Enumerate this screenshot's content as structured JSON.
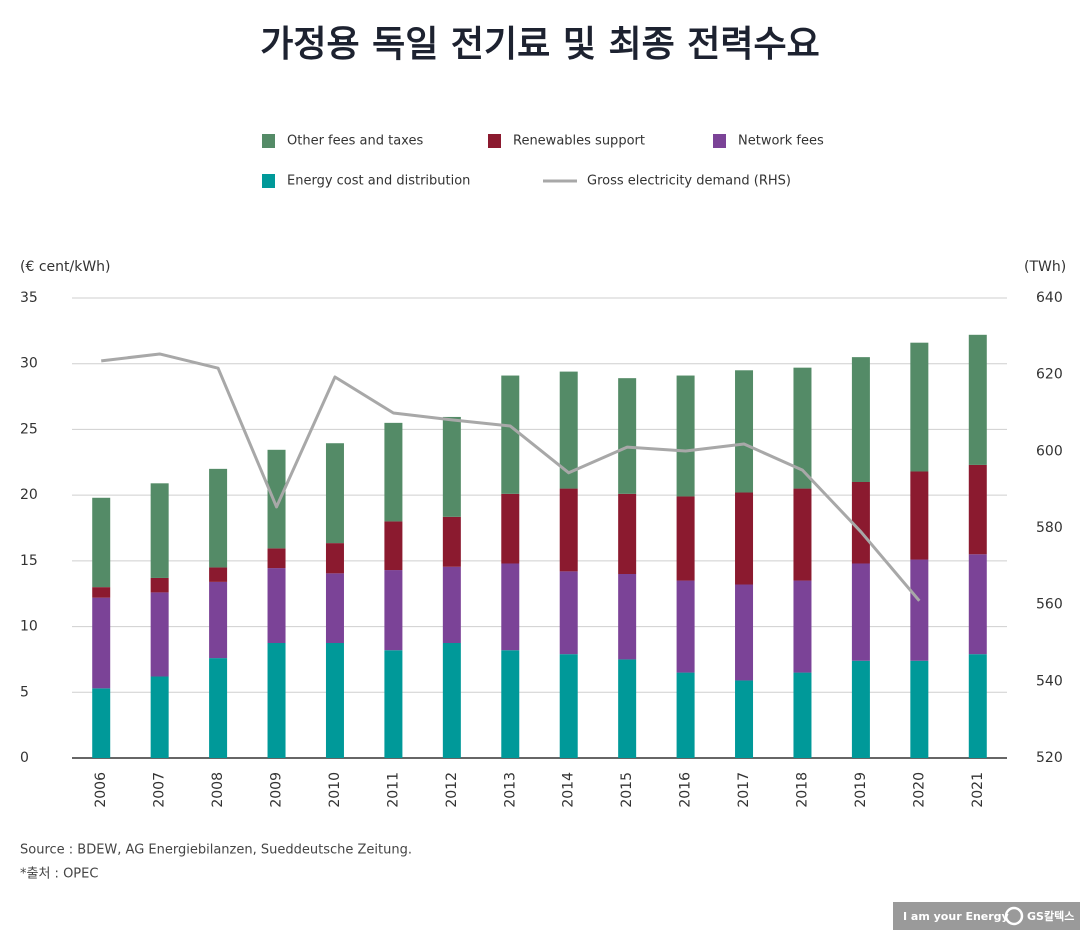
{
  "chart_data": {
    "type": "bar",
    "title": "가정용 독일 전기료 및 최종 전력수요",
    "y_label": "(€ cent/kWh)",
    "y2_label": "(TWh)",
    "categories": [
      "2006",
      "2007",
      "2008",
      "2009",
      "2010",
      "2011",
      "2012",
      "2013",
      "2014",
      "2015",
      "2016",
      "2017",
      "2018",
      "2019",
      "2020",
      "2021"
    ],
    "series": [
      {
        "name": "Other fees and taxes",
        "color": "#548b67",
        "values": [
          6.8,
          7.2,
          7.5,
          7.5,
          7.6,
          7.5,
          7.6,
          9.0,
          8.9,
          8.8,
          9.2,
          9.3,
          9.2,
          9.5,
          9.8,
          9.9
        ]
      },
      {
        "name": "Renewables support",
        "color": "#8b1a2f",
        "values": [
          0.8,
          1.1,
          1.1,
          1.5,
          2.3,
          3.7,
          3.8,
          5.3,
          6.3,
          6.1,
          6.4,
          7.0,
          7.0,
          6.2,
          6.7,
          6.8
        ]
      },
      {
        "name": "Network fees",
        "color": "#7b4397",
        "values": [
          6.9,
          6.4,
          5.8,
          5.7,
          5.3,
          6.1,
          5.8,
          6.6,
          6.3,
          6.5,
          7.0,
          7.3,
          7.0,
          7.4,
          7.7,
          7.6
        ]
      },
      {
        "name": "Energy cost and distribution",
        "color": "#009999",
        "values": [
          5.3,
          6.2,
          7.6,
          8.75,
          8.75,
          8.2,
          8.75,
          8.2,
          7.9,
          7.5,
          6.5,
          5.9,
          6.5,
          7.4,
          7.4,
          7.9
        ]
      },
      {
        "name": "Gross electricity demand (RHS)",
        "color": "#a8a8a8",
        "type": "line",
        "axis": "y2",
        "values": [
          623.6,
          625.4,
          621.7,
          585.5,
          619.4,
          610,
          608.2,
          606.6,
          594.4,
          601.1,
          600.1,
          601.9,
          595.1,
          579,
          561,
          null
        ]
      }
    ],
    "ylim": [
      0,
      35
    ],
    "yticks": [
      0,
      5,
      10,
      15,
      20,
      25,
      30,
      35
    ],
    "y2lim": [
      520,
      640
    ],
    "y2ticks": [
      520,
      540,
      560,
      580,
      600,
      620,
      640
    ],
    "grid": true,
    "source": "Source : BDEW, AG Energiebilanzen, Sueddeutsche Zeitung.",
    "note": "*출처 : OPEC"
  },
  "brand": {
    "slogan": "I am your Energy",
    "logo": "GS칼텍스"
  }
}
